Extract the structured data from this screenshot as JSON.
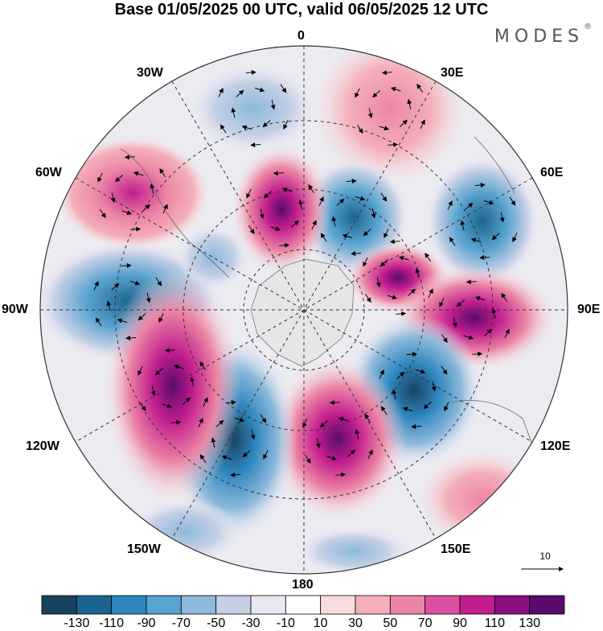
{
  "title": "Base 01/05/2025 00 UTC, valid 06/05/2025 12 UTC",
  "brand": {
    "name": "MODES",
    "mark": "®"
  },
  "longitude_labels": {
    "n0": "0",
    "n30e": "30E",
    "n60e": "60E",
    "n90e": "90E",
    "n120e": "120E",
    "n150e": "150E",
    "n180": "180",
    "n150w": "150W",
    "n120w": "120W",
    "n90w": "90W",
    "n60w": "60W",
    "n30w": "30W"
  },
  "reference_vector": {
    "label": "10"
  },
  "colorbar": {
    "colors": [
      "#17425f",
      "#1b6590",
      "#2e86bd",
      "#58a3cf",
      "#8db9db",
      "#c4cfe5",
      "#e8e7f1",
      "#ffffff",
      "#f9dcdd",
      "#f4b0b8",
      "#ec85a5",
      "#dd4fa0",
      "#c11d8e",
      "#8c0f7e",
      "#5a0b6b"
    ],
    "tick_labels": [
      "-130",
      "-110",
      "-90",
      "-70",
      "-50",
      "-30",
      "-10",
      "10",
      "30",
      "50",
      "70",
      "90",
      "110",
      "130"
    ]
  },
  "chart_data": {
    "type": "map",
    "projection": "south polar stereographic",
    "field": "anomaly with wind vectors",
    "centers": [
      {
        "name": "neg-0",
        "lon": 0,
        "value": -40
      },
      {
        "name": "pos-30e",
        "lon": 25,
        "value": 50
      },
      {
        "name": "neg-15e",
        "lon": 20,
        "value": -90
      },
      {
        "name": "pos-20w",
        "lon": -20,
        "value": 90
      },
      {
        "name": "pos-60w",
        "lon": -60,
        "value": 70
      },
      {
        "name": "neg-60e",
        "lon": 60,
        "value": -80
      },
      {
        "name": "pos-80e",
        "lon": 80,
        "value": 90
      },
      {
        "name": "pos-100e",
        "lon": 100,
        "value": 90
      },
      {
        "name": "neg-90w",
        "lon": -90,
        "value": -90
      },
      {
        "name": "neg-140e",
        "lon": 140,
        "value": -110
      },
      {
        "name": "pos-170e",
        "lon": 170,
        "value": 110
      },
      {
        "name": "neg-155w",
        "lon": -155,
        "value": -130
      },
      {
        "name": "pos-120w",
        "lon": -120,
        "value": 130
      }
    ]
  }
}
